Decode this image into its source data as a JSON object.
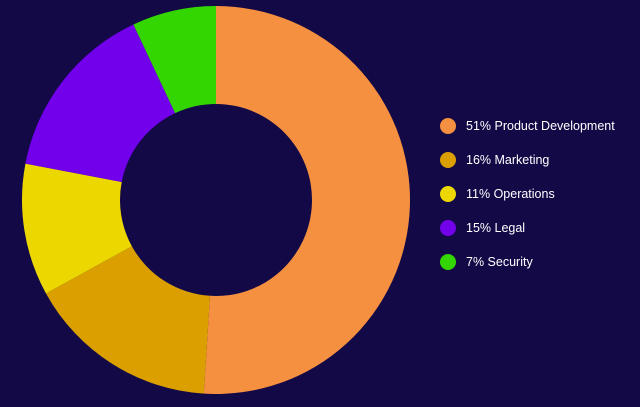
{
  "chart_data": {
    "type": "pie",
    "variant": "donut",
    "categories": [
      "Product Development",
      "Marketing",
      "Operations",
      "Legal",
      "Security"
    ],
    "values": [
      51,
      16,
      11,
      15,
      7
    ],
    "unit": "%",
    "colors": [
      "#f59040",
      "#dba000",
      "#ecd800",
      "#7200ea",
      "#33d600"
    ],
    "legend_position": "right",
    "background": "#130947",
    "legend": [
      {
        "label": "51% Product Development",
        "color": "#f59040"
      },
      {
        "label": "16% Marketing",
        "color": "#dba000"
      },
      {
        "label": "11% Operations",
        "color": "#ecd800"
      },
      {
        "label": "15% Legal",
        "color": "#7200ea"
      },
      {
        "label": "7% Security",
        "color": "#33d600"
      }
    ]
  }
}
